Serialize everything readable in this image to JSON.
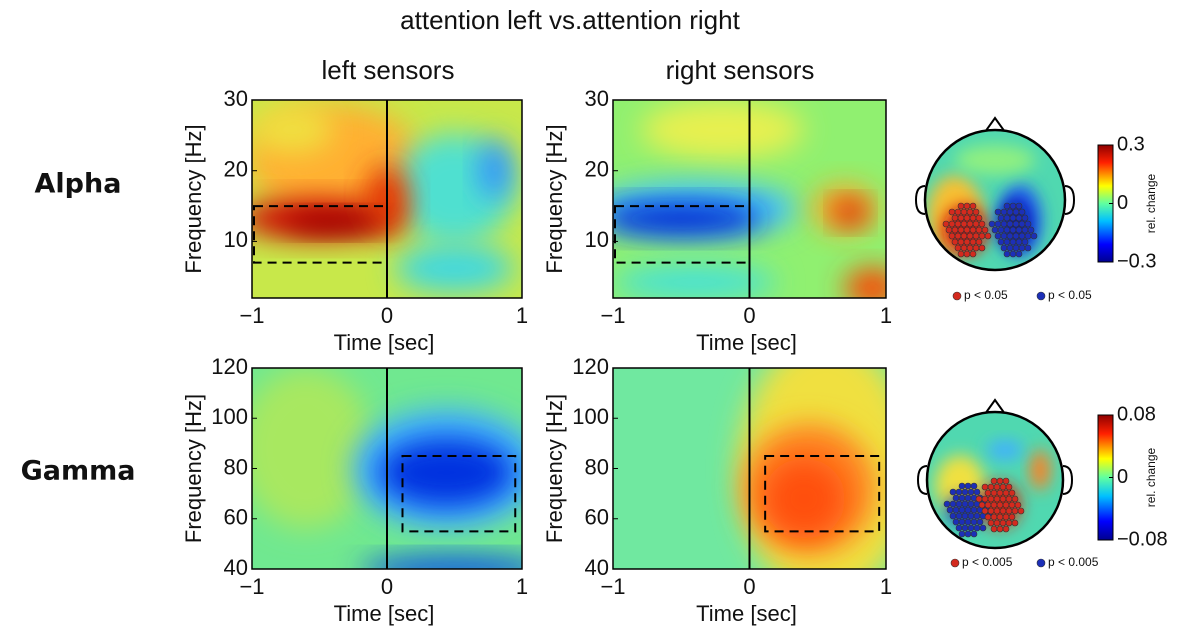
{
  "title": "attention left vs.attention right",
  "columns": [
    "left sensors",
    "right sensors"
  ],
  "rows": [
    {
      "label": "Alpha",
      "xlabel": "Time [sec]",
      "ylabel": "Frequency [Hz]",
      "xlim": [
        -1,
        1
      ],
      "xticks": [
        {
          "value": -1,
          "label": "−1"
        },
        0,
        1
      ],
      "ylim": [
        2,
        30
      ],
      "yticks": [
        10,
        20,
        30
      ],
      "box": {
        "x": [
          -1,
          0
        ],
        "y": [
          7,
          15
        ]
      },
      "colorbar": {
        "label": "rel. change",
        "lim": [
          -0.3,
          0.3
        ],
        "ticks": [
          {
            "value": -0.3,
            "label": "−0.3"
          },
          0,
          0.3
        ]
      },
      "legend": [
        {
          "label": "p < 0.05",
          "color": "#d42a1e"
        },
        {
          "label": "p < 0.05",
          "color": "#1c2fb8"
        }
      ]
    },
    {
      "label": "Gamma",
      "xlabel": "Time [sec]",
      "ylabel": "Frequency [Hz]",
      "xlim": [
        -1,
        1
      ],
      "xticks": [
        {
          "value": -1,
          "label": "−1"
        },
        0,
        1
      ],
      "ylim": [
        40,
        120
      ],
      "yticks": [
        40,
        60,
        80,
        100,
        120
      ],
      "box": {
        "x": [
          0.1,
          0.95
        ],
        "y": [
          55,
          85
        ]
      },
      "colorbar": {
        "label": "rel. change",
        "lim": [
          -0.08,
          0.08
        ],
        "ticks": [
          {
            "value": -0.08,
            "label": "−0.08"
          },
          0,
          0.08
        ]
      },
      "legend": [
        {
          "label": "p < 0.005",
          "color": "#d42a1e"
        },
        {
          "label": "p < 0.005",
          "color": "#1c2fb8"
        }
      ]
    }
  ]
}
